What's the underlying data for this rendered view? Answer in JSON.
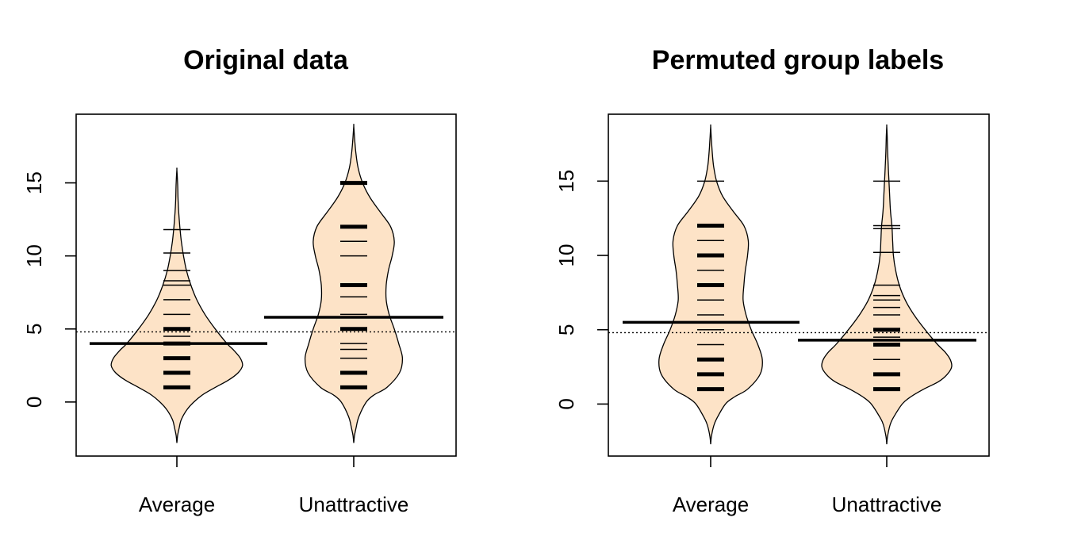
{
  "chart_data": [
    {
      "type": "beanplot",
      "title": "Original data",
      "categories": [
        "Average",
        "Unattractive"
      ],
      "ylim": [
        -3.7,
        19.7
      ],
      "yticks": [
        0,
        5,
        10,
        15
      ],
      "overall_mean": 4.8,
      "groups": [
        {
          "name": "Average",
          "mean": 4.0,
          "observations": [
            1,
            1,
            1,
            2,
            2,
            3,
            3,
            4,
            4,
            4,
            4,
            4.5,
            5,
            5,
            6,
            7,
            8,
            8.3,
            9,
            10.2,
            11.8
          ],
          "density": [
            [
              -2.8,
              0
            ],
            [
              -2.3,
              0.01
            ],
            [
              -1.8,
              0.03
            ],
            [
              -1.2,
              0.06
            ],
            [
              -0.5,
              0.14
            ],
            [
              0,
              0.23
            ],
            [
              0.5,
              0.35
            ],
            [
              1,
              0.52
            ],
            [
              1.5,
              0.7
            ],
            [
              2,
              0.83
            ],
            [
              2.5,
              0.89
            ],
            [
              3,
              0.86
            ],
            [
              3.5,
              0.78
            ],
            [
              4,
              0.68
            ],
            [
              5,
              0.52
            ],
            [
              6,
              0.38
            ],
            [
              7,
              0.27
            ],
            [
              8,
              0.19
            ],
            [
              9,
              0.13
            ],
            [
              10,
              0.09
            ],
            [
              11,
              0.06
            ],
            [
              12,
              0.04
            ],
            [
              13,
              0.025
            ],
            [
              14,
              0.015
            ],
            [
              15,
              0.01
            ],
            [
              15.9,
              0
            ]
          ]
        },
        {
          "name": "Unattractive",
          "mean": 5.8,
          "observations": [
            1,
            1,
            1,
            2,
            2,
            3,
            3.6,
            4,
            5,
            5,
            5.8,
            6,
            7.2,
            8,
            8,
            10,
            11,
            12,
            12,
            15,
            15
          ],
          "density": [
            [
              -2.8,
              0
            ],
            [
              -2.3,
              0.01
            ],
            [
              -1.8,
              0.03
            ],
            [
              -1,
              0.07
            ],
            [
              0,
              0.17
            ],
            [
              0.5,
              0.28
            ],
            [
              1,
              0.45
            ],
            [
              2,
              0.62
            ],
            [
              3,
              0.66
            ],
            [
              4,
              0.61
            ],
            [
              5,
              0.55
            ],
            [
              6,
              0.48
            ],
            [
              7,
              0.44
            ],
            [
              8,
              0.44
            ],
            [
              9,
              0.47
            ],
            [
              10,
              0.52
            ],
            [
              11,
              0.55
            ],
            [
              12,
              0.5
            ],
            [
              13,
              0.36
            ],
            [
              14,
              0.22
            ],
            [
              15,
              0.12
            ],
            [
              16,
              0.06
            ],
            [
              17,
              0.03
            ],
            [
              18,
              0.012
            ],
            [
              18.9,
              0
            ]
          ]
        }
      ]
    },
    {
      "type": "beanplot",
      "title": "Permuted group labels",
      "categories": [
        "Average",
        "Unattractive"
      ],
      "ylim": [
        -3.5,
        19.5
      ],
      "yticks": [
        0,
        5,
        10,
        15
      ],
      "overall_mean": 4.8,
      "groups": [
        {
          "name": "Average",
          "mean": 5.5,
          "observations": [
            1,
            1,
            1,
            2,
            2,
            3,
            3,
            3,
            4,
            5,
            6,
            7,
            8,
            8,
            9,
            10,
            10,
            11,
            12,
            12,
            15
          ],
          "density": [
            [
              -2.7,
              0
            ],
            [
              -2.2,
              0.01
            ],
            [
              -1.5,
              0.04
            ],
            [
              -1,
              0.08
            ],
            [
              0,
              0.2
            ],
            [
              0.5,
              0.33
            ],
            [
              1,
              0.5
            ],
            [
              2,
              0.67
            ],
            [
              3,
              0.7
            ],
            [
              4,
              0.64
            ],
            [
              5,
              0.55
            ],
            [
              6,
              0.48
            ],
            [
              7,
              0.44
            ],
            [
              8,
              0.45
            ],
            [
              9,
              0.47
            ],
            [
              10,
              0.5
            ],
            [
              11,
              0.51
            ],
            [
              12,
              0.45
            ],
            [
              13,
              0.3
            ],
            [
              14,
              0.16
            ],
            [
              15,
              0.08
            ],
            [
              16,
              0.04
            ],
            [
              17,
              0.02
            ],
            [
              18,
              0.008
            ],
            [
              18.7,
              0
            ]
          ]
        },
        {
          "name": "Unattractive",
          "mean": 4.3,
          "observations": [
            1,
            1,
            2,
            2,
            3,
            4,
            4,
            4,
            4.5,
            5,
            5,
            6,
            6.5,
            7,
            7.3,
            8,
            10.2,
            11.8,
            12,
            15
          ],
          "density": [
            [
              -2.7,
              0
            ],
            [
              -2.2,
              0.01
            ],
            [
              -1.5,
              0.04
            ],
            [
              -1,
              0.08
            ],
            [
              0,
              0.21
            ],
            [
              0.5,
              0.33
            ],
            [
              1,
              0.5
            ],
            [
              1.5,
              0.7
            ],
            [
              2,
              0.82
            ],
            [
              2.5,
              0.88
            ],
            [
              3,
              0.86
            ],
            [
              3.5,
              0.79
            ],
            [
              4,
              0.69
            ],
            [
              5,
              0.52
            ],
            [
              6,
              0.37
            ],
            [
              7,
              0.25
            ],
            [
              8,
              0.17
            ],
            [
              9,
              0.12
            ],
            [
              10,
              0.09
            ],
            [
              11,
              0.08
            ],
            [
              12,
              0.07
            ],
            [
              13,
              0.05
            ],
            [
              14,
              0.04
            ],
            [
              15,
              0.03
            ],
            [
              16,
              0.02
            ],
            [
              17,
              0.012
            ],
            [
              18,
              0.006
            ],
            [
              18.7,
              0
            ]
          ]
        }
      ]
    }
  ]
}
